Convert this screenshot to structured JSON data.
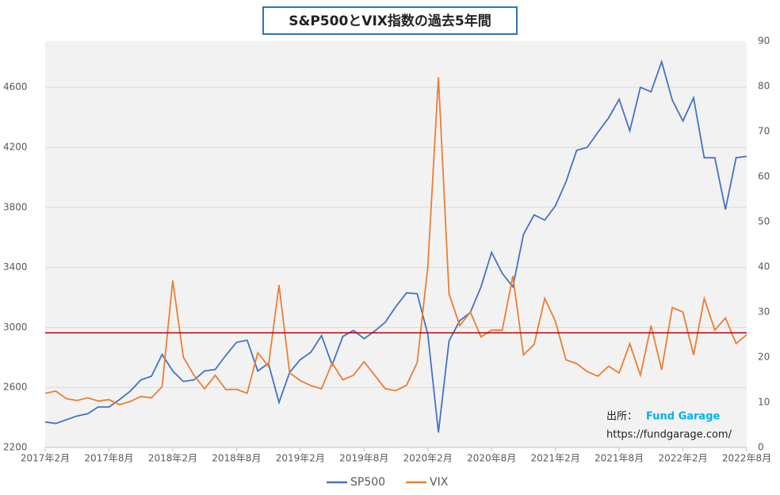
{
  "chart_data": {
    "type": "line",
    "title": "S&P500とVIX指数の過去5年間",
    "x": [
      "2017-02",
      "2017-03",
      "2017-04",
      "2017-05",
      "2017-06",
      "2017-07",
      "2017-08",
      "2017-09",
      "2017-10",
      "2017-11",
      "2017-12",
      "2018-01",
      "2018-02",
      "2018-03",
      "2018-04",
      "2018-05",
      "2018-06",
      "2018-07",
      "2018-08",
      "2018-09",
      "2018-10",
      "2018-11",
      "2018-12",
      "2019-01",
      "2019-02",
      "2019-03",
      "2019-04",
      "2019-05",
      "2019-06",
      "2019-07",
      "2019-08",
      "2019-09",
      "2019-10",
      "2019-11",
      "2019-12",
      "2020-01",
      "2020-02",
      "2020-03",
      "2020-04",
      "2020-05",
      "2020-06",
      "2020-07",
      "2020-08",
      "2020-09",
      "2020-10",
      "2020-11",
      "2020-12",
      "2021-01",
      "2021-02",
      "2021-03",
      "2021-04",
      "2021-05",
      "2021-06",
      "2021-07",
      "2021-08",
      "2021-09",
      "2021-10",
      "2021-11",
      "2021-12",
      "2022-01",
      "2022-02",
      "2022-03",
      "2022-04",
      "2022-05",
      "2022-06",
      "2022-07",
      "2022-08"
    ],
    "series": [
      {
        "name": "SP500",
        "color": "#4472c4",
        "values": [
          2370,
          2360,
          2385,
          2410,
          2425,
          2470,
          2470,
          2520,
          2575,
          2650,
          2675,
          2820,
          2710,
          2640,
          2650,
          2710,
          2720,
          2815,
          2900,
          2915,
          2710,
          2760,
          2500,
          2700,
          2785,
          2835,
          2945,
          2750,
          2940,
          2980,
          2925,
          2975,
          3035,
          3140,
          3230,
          3225,
          2954,
          2300,
          2910,
          3045,
          3100,
          3270,
          3500,
          3360,
          3270,
          3620,
          3750,
          3715,
          3810,
          3970,
          4180,
          4200,
          4300,
          4395,
          4520,
          4310,
          4600,
          4570,
          4770,
          4515,
          4375,
          4530,
          4130,
          4130,
          3785,
          4130,
          4140
        ]
      },
      {
        "name": "VIX",
        "color": "#ed7d31",
        "axis": "y2",
        "values": [
          12,
          12.5,
          10.8,
          10.4,
          11,
          10.3,
          10.6,
          9.5,
          10.2,
          11.3,
          11,
          13.5,
          37,
          20,
          16,
          13,
          16,
          12.8,
          12.9,
          12,
          21,
          18,
          36,
          16.5,
          14.8,
          13.7,
          13,
          18.7,
          15,
          16,
          19,
          16,
          13,
          12.6,
          13.8,
          18.8,
          40,
          82,
          34,
          27,
          30,
          24.5,
          26,
          26,
          38,
          20.5,
          22.8,
          33,
          28,
          19.4,
          18.6,
          16.8,
          15.8,
          18,
          16.5,
          23,
          16,
          27,
          17.2,
          31,
          30,
          20.5,
          33,
          26,
          28.7,
          23,
          25
        ]
      }
    ],
    "ylim": [
      2200,
      4907
    ],
    "yticks": [
      2200,
      2600,
      3000,
      3400,
      3800,
      4200,
      4600
    ],
    "y2lim": [
      0,
      90
    ],
    "y2ticks": [
      0,
      10,
      20,
      30,
      40,
      50,
      60,
      70,
      80,
      90
    ],
    "xticks": [
      {
        "value": "2017-02",
        "label": "2017年2月"
      },
      {
        "value": "2017-08",
        "label": "2017年8月"
      },
      {
        "value": "2018-02",
        "label": "2018年2月"
      },
      {
        "value": "2018-08",
        "label": "2018年8月"
      },
      {
        "value": "2019-02",
        "label": "2019年2月"
      },
      {
        "value": "2019-08",
        "label": "2019年8月"
      },
      {
        "value": "2020-02",
        "label": "2020年2月"
      },
      {
        "value": "2020-08",
        "label": "2020年8月"
      },
      {
        "value": "2021-02",
        "label": "2021年2月"
      },
      {
        "value": "2021-08",
        "label": "2021年8月"
      },
      {
        "value": "2022-02",
        "label": "2022年2月"
      },
      {
        "value": "2022-08",
        "label": "2022年8月"
      }
    ],
    "reference_line": {
      "value": 25.4,
      "axis": "y2",
      "color": "#c00000"
    },
    "grid": true,
    "source_label": "出所：",
    "source_name": "Fund Garage",
    "source_url": "https://fundgarage.com/"
  }
}
